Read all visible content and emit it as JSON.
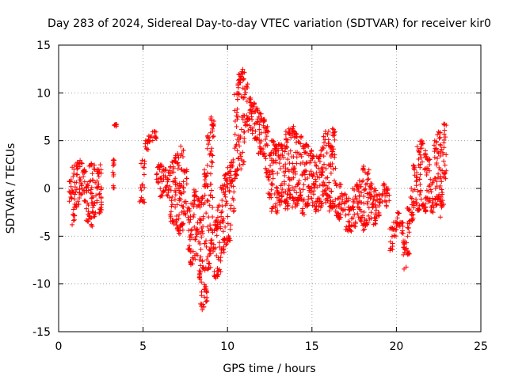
{
  "chart_data": {
    "type": "scatter",
    "title": "Day 283 of 2024, Sidereal Day-to-day VTEC variation (SDTVAR) for receiver kir0",
    "xlabel": "GPS time / hours",
    "ylabel": "SDTVAR / TECUs",
    "xlim": [
      0,
      25
    ],
    "ylim": [
      -15,
      15
    ],
    "xticks": [
      0,
      5,
      10,
      15,
      20,
      25
    ],
    "yticks": [
      -15,
      -10,
      -5,
      0,
      5,
      10,
      15
    ],
    "grid": true,
    "marker": "+",
    "color": "#ff0000",
    "envelope_description": "Dense trajectories of many satellite arcs; sampled as [x_hours, y_low, y_high] envelopes",
    "envelopes": [
      [
        0.6,
        -1.5,
        1.0
      ],
      [
        0.8,
        -3.5,
        2.5
      ],
      [
        1.0,
        -2.0,
        3.0
      ],
      [
        1.2,
        -1.0,
        3.0
      ],
      [
        1.4,
        -1.5,
        2.0
      ],
      [
        1.6,
        -3.5,
        0.5
      ],
      [
        1.8,
        -4.0,
        3.0
      ],
      [
        2.0,
        -3.0,
        2.5
      ],
      [
        2.2,
        -1.5,
        2.0
      ],
      [
        2.4,
        -2.5,
        2.5
      ],
      [
        3.2,
        0.0,
        3.0
      ],
      [
        3.3,
        6.5,
        6.7
      ],
      [
        4.8,
        -1.5,
        3.0
      ],
      [
        5.1,
        4.0,
        5.0
      ],
      [
        5.3,
        4.5,
        5.5
      ],
      [
        5.5,
        5.0,
        6.0
      ],
      [
        5.8,
        0.5,
        2.5
      ],
      [
        6.0,
        -1.0,
        2.5
      ],
      [
        6.2,
        -0.5,
        2.0
      ],
      [
        6.4,
        -1.0,
        2.0
      ],
      [
        6.6,
        -3.5,
        3.0
      ],
      [
        6.8,
        -4.0,
        3.5
      ],
      [
        7.0,
        -5.0,
        4.0
      ],
      [
        7.2,
        -4.5,
        4.5
      ],
      [
        7.4,
        -3.0,
        2.0
      ],
      [
        7.6,
        -6.5,
        -2.0
      ],
      [
        7.8,
        -8.0,
        -1.5
      ],
      [
        8.0,
        -7.5,
        0.0
      ],
      [
        8.2,
        -9.5,
        -1.0
      ],
      [
        8.4,
        -12.5,
        -0.5
      ],
      [
        8.6,
        -12.0,
        2.0
      ],
      [
        8.8,
        -8.5,
        6.0
      ],
      [
        9.0,
        -7.0,
        7.5
      ],
      [
        9.2,
        -9.5,
        -3.0
      ],
      [
        9.4,
        -9.5,
        -1.0
      ],
      [
        9.6,
        -7.0,
        0.5
      ],
      [
        9.8,
        -6.0,
        1.5
      ],
      [
        10.0,
        -5.5,
        2.5
      ],
      [
        10.2,
        -3.0,
        3.0
      ],
      [
        10.4,
        1.0,
        10.0
      ],
      [
        10.6,
        2.0,
        12.0
      ],
      [
        10.8,
        2.5,
        12.5
      ],
      [
        11.0,
        6.5,
        11.0
      ],
      [
        11.2,
        6.0,
        9.5
      ],
      [
        11.4,
        5.0,
        9.0
      ],
      [
        11.6,
        5.0,
        8.5
      ],
      [
        11.8,
        3.5,
        8.0
      ],
      [
        12.0,
        3.0,
        7.5
      ],
      [
        12.2,
        1.0,
        6.5
      ],
      [
        12.4,
        -1.0,
        4.0
      ],
      [
        12.6,
        -2.5,
        5.0
      ],
      [
        12.8,
        -3.0,
        4.5
      ],
      [
        13.0,
        -2.0,
        5.0
      ],
      [
        13.2,
        -1.5,
        4.5
      ],
      [
        13.4,
        -2.5,
        6.0
      ],
      [
        13.6,
        -1.0,
        6.5
      ],
      [
        13.8,
        -2.0,
        7.0
      ],
      [
        14.0,
        -2.0,
        6.0
      ],
      [
        14.2,
        -1.5,
        5.5
      ],
      [
        14.4,
        -3.0,
        4.5
      ],
      [
        14.6,
        -2.0,
        5.0
      ],
      [
        14.8,
        -1.5,
        4.0
      ],
      [
        15.0,
        -2.0,
        3.5
      ],
      [
        15.2,
        -2.5,
        3.5
      ],
      [
        15.4,
        -2.0,
        4.0
      ],
      [
        15.6,
        -1.0,
        5.5
      ],
      [
        15.8,
        -1.5,
        6.0
      ],
      [
        16.0,
        -2.5,
        5.0
      ],
      [
        16.2,
        -2.0,
        6.5
      ],
      [
        16.4,
        -3.0,
        0.5
      ],
      [
        16.6,
        -3.5,
        0.5
      ],
      [
        16.8,
        -2.5,
        -0.5
      ],
      [
        17.0,
        -4.5,
        -1.0
      ],
      [
        17.2,
        -4.5,
        -2.0
      ],
      [
        17.4,
        -4.0,
        0.0
      ],
      [
        17.6,
        -3.0,
        0.5
      ],
      [
        17.8,
        -3.5,
        1.0
      ],
      [
        18.0,
        -4.5,
        2.5
      ],
      [
        18.2,
        -4.0,
        2.0
      ],
      [
        18.4,
        -3.5,
        0.5
      ],
      [
        18.6,
        -4.0,
        0.0
      ],
      [
        18.8,
        -3.0,
        -0.5
      ],
      [
        19.0,
        -1.5,
        -0.5
      ],
      [
        19.2,
        -1.5,
        0.5
      ],
      [
        19.4,
        -2.0,
        0.0
      ],
      [
        19.6,
        -6.5,
        -4.0
      ],
      [
        19.8,
        -5.0,
        -3.5
      ],
      [
        20.0,
        -4.0,
        -2.5
      ],
      [
        20.2,
        -5.5,
        -3.5
      ],
      [
        20.4,
        -8.5,
        -5.5
      ],
      [
        20.6,
        -7.0,
        -2.0
      ],
      [
        20.8,
        -3.5,
        0.0
      ],
      [
        21.0,
        -2.0,
        2.5
      ],
      [
        21.2,
        -2.5,
        4.5
      ],
      [
        21.4,
        -2.0,
        5.0
      ],
      [
        21.6,
        -2.5,
        4.0
      ],
      [
        21.8,
        -1.5,
        3.5
      ],
      [
        22.0,
        -2.5,
        1.0
      ],
      [
        22.2,
        -2.0,
        5.0
      ],
      [
        22.4,
        -1.5,
        6.0
      ],
      [
        22.6,
        -2.0,
        4.5
      ],
      [
        22.8,
        1.0,
        7.0
      ]
    ],
    "outliers": [
      [
        0.8,
        -3.8
      ],
      [
        2.4,
        -2.6
      ],
      [
        3.3,
        6.6
      ],
      [
        4.8,
        -1.4
      ],
      [
        8.5,
        -12.7
      ],
      [
        22.6,
        -3.0
      ]
    ]
  }
}
